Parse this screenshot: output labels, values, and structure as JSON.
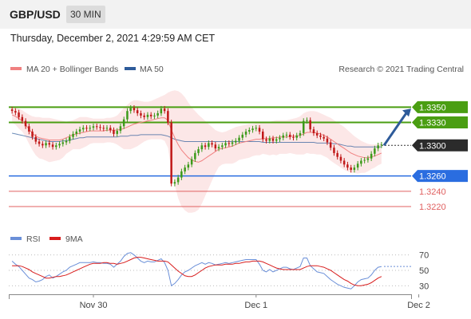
{
  "header": {
    "symbol": "GBP/USD",
    "timeframe": "30 MIN"
  },
  "datetime": "Thursday, December 2, 2021 4:29:59 AM CET",
  "colors": {
    "ma20": "#f08080",
    "ma50": "#2e5b9a",
    "rsi": "#6a8fd8",
    "rsi_ma": "#d81c1c",
    "resistance": "#4a9e12",
    "support": "#2a6de0",
    "target": "#e06060",
    "bull_candle": "#3c9a1a",
    "bear_candle": "#c01818",
    "arrow": "#2e5b9a"
  },
  "chart_data": [
    {
      "type": "candlestick",
      "legend": [
        {
          "name": "MA 20 + Bollinger Bands",
          "color": "#f08080"
        },
        {
          "name": "MA 50",
          "color": "#2e5b9a"
        }
      ],
      "credit": "Research © 2021 Trading Central",
      "ylim": [
        1.3195,
        1.339
      ],
      "x_ticks": [
        {
          "label": "Nov 30",
          "index": 24
        },
        {
          "label": "Dec 1",
          "index": 72
        },
        {
          "label": "Dec 2",
          "index": 120
        }
      ],
      "last_price": "1.3300",
      "levels": [
        {
          "label": "1.3350",
          "value": 1.335,
          "kind": "resistance"
        },
        {
          "label": "1.3330",
          "value": 1.333,
          "kind": "resistance"
        },
        {
          "label": "1.3260",
          "value": 1.326,
          "kind": "pivot"
        },
        {
          "label": "1.3240",
          "value": 1.324,
          "kind": "target"
        },
        {
          "label": "1.3220",
          "value": 1.322,
          "kind": "target"
        }
      ],
      "forecast_arrow": {
        "from": 1.33,
        "to": 1.3348
      },
      "close": [
        1.3345,
        1.3343,
        1.3337,
        1.3332,
        1.3325,
        1.3318,
        1.3311,
        1.3305,
        1.3302,
        1.33,
        1.3303,
        1.3301,
        1.3298,
        1.33,
        1.3302,
        1.3304,
        1.3306,
        1.3311,
        1.3315,
        1.3318,
        1.3321,
        1.3323,
        1.3322,
        1.3323,
        1.3325,
        1.3324,
        1.3323,
        1.3322,
        1.3323,
        1.332,
        1.3315,
        1.3319,
        1.3325,
        1.3334,
        1.3345,
        1.3349,
        1.3346,
        1.3342,
        1.3339,
        1.3337,
        1.334,
        1.3338,
        1.3339,
        1.3342,
        1.3348,
        1.3345,
        1.333,
        1.325,
        1.3252,
        1.3258,
        1.3266,
        1.3271,
        1.3275,
        1.3282,
        1.329,
        1.3295,
        1.33,
        1.3298,
        1.3303,
        1.3301,
        1.3296,
        1.3298,
        1.33,
        1.3303,
        1.3302,
        1.3304,
        1.3306,
        1.331,
        1.3314,
        1.3318,
        1.332,
        1.3322,
        1.3323,
        1.3318,
        1.3308,
        1.3306,
        1.3309,
        1.3306,
        1.3308,
        1.331,
        1.3313,
        1.3314,
        1.3311,
        1.331,
        1.3313,
        1.3316,
        1.3332,
        1.3333,
        1.3321,
        1.3316,
        1.3313,
        1.3311,
        1.3309,
        1.3304,
        1.3297,
        1.329,
        1.3285,
        1.328,
        1.3275,
        1.3271,
        1.3268,
        1.3271,
        1.3276,
        1.328,
        1.3281,
        1.3283,
        1.3289,
        1.3296,
        1.33,
        1.3301
      ],
      "ma20": [
        1.334,
        1.3338,
        1.3335,
        1.3332,
        1.3327,
        1.3321,
        1.3316,
        1.3312,
        1.331,
        1.3309,
        1.3308,
        1.3307,
        1.3307,
        1.3307,
        1.3307,
        1.3308,
        1.331,
        1.3312,
        1.3314,
        1.3315,
        1.3316,
        1.3317,
        1.3318,
        1.3319,
        1.3319,
        1.3319,
        1.3319,
        1.3319,
        1.332,
        1.332,
        1.332,
        1.332,
        1.3321,
        1.3322,
        1.3324,
        1.3326,
        1.3328,
        1.3329,
        1.333,
        1.3331,
        1.3332,
        1.3333,
        1.3334,
        1.3335,
        1.3336,
        1.3336,
        1.3333,
        1.332,
        1.331,
        1.3301,
        1.3294,
        1.3289,
        1.3284,
        1.3281,
        1.3279,
        1.3278,
        1.328,
        1.3283,
        1.3286,
        1.3289,
        1.3292,
        1.3295,
        1.3296,
        1.3297,
        1.3298,
        1.3299,
        1.3301,
        1.3303,
        1.3304,
        1.3305,
        1.3306,
        1.3307,
        1.3308,
        1.3308,
        1.3309,
        1.3309,
        1.3309,
        1.331,
        1.331,
        1.3311,
        1.3311,
        1.3311,
        1.3312,
        1.3312,
        1.3312,
        1.3313,
        1.3315,
        1.3317,
        1.3317,
        1.3317,
        1.3316,
        1.3315,
        1.3313,
        1.3311,
        1.3308,
        1.3305,
        1.3302,
        1.3299,
        1.3296,
        1.3293,
        1.329,
        1.3288,
        1.3286,
        1.3285,
        1.3284,
        1.3284,
        1.3285,
        1.3286,
        1.3288,
        1.329
      ],
      "upper_band": [
        1.335,
        1.3349,
        1.3348,
        1.3346,
        1.3343,
        1.334,
        1.3338,
        1.3337,
        1.3337,
        1.3336,
        1.3336,
        1.3336,
        1.3335,
        1.3334,
        1.3333,
        1.3332,
        1.3331,
        1.3332,
        1.3333,
        1.3335,
        1.3337,
        1.3337,
        1.3337,
        1.3336,
        1.3335,
        1.3335,
        1.3335,
        1.3335,
        1.3336,
        1.3336,
        1.3337,
        1.3339,
        1.3344,
        1.3349,
        1.3353,
        1.3357,
        1.3359,
        1.3359,
        1.3358,
        1.3357,
        1.3357,
        1.3358,
        1.336,
        1.3362,
        1.3364,
        1.3366,
        1.3369,
        1.3371,
        1.3372,
        1.3371,
        1.3368,
        1.3363,
        1.3356,
        1.335,
        1.3345,
        1.334,
        1.3336,
        1.3332,
        1.3328,
        1.3324,
        1.332,
        1.3318,
        1.3317,
        1.3318,
        1.332,
        1.3322,
        1.3324,
        1.3325,
        1.3326,
        1.3327,
        1.3328,
        1.3328,
        1.3329,
        1.3329,
        1.3329,
        1.333,
        1.3331,
        1.3332,
        1.3333,
        1.3333,
        1.3333,
        1.3333,
        1.3334,
        1.3335,
        1.3336,
        1.3338,
        1.3342,
        1.3344,
        1.3345,
        1.3345,
        1.3344,
        1.3342,
        1.334,
        1.3338,
        1.3336,
        1.3333,
        1.333,
        1.3327,
        1.3324,
        1.332,
        1.3316,
        1.3312,
        1.3309,
        1.3306,
        1.3304,
        1.3302,
        1.3301,
        1.3301,
        1.3302,
        1.3304
      ],
      "lower_band": [
        1.333,
        1.3327,
        1.3322,
        1.3318,
        1.3311,
        1.3302,
        1.3294,
        1.3287,
        1.3283,
        1.3282,
        1.328,
        1.3278,
        1.3279,
        1.328,
        1.3281,
        1.3284,
        1.3289,
        1.3292,
        1.3295,
        1.3295,
        1.3295,
        1.3297,
        1.3299,
        1.3302,
        1.3303,
        1.3303,
        1.3303,
        1.3303,
        1.3304,
        1.3304,
        1.3303,
        1.3301,
        1.3298,
        1.3295,
        1.3295,
        1.3295,
        1.3297,
        1.3299,
        1.3302,
        1.3305,
        1.3307,
        1.3308,
        1.3308,
        1.3308,
        1.3308,
        1.3306,
        1.3297,
        1.3269,
        1.3248,
        1.3231,
        1.322,
        1.3215,
        1.3212,
        1.3212,
        1.3213,
        1.3216,
        1.3224,
        1.3234,
        1.3244,
        1.3254,
        1.3264,
        1.3272,
        1.3275,
        1.3276,
        1.3276,
        1.3276,
        1.3278,
        1.3281,
        1.3282,
        1.3283,
        1.3284,
        1.3286,
        1.3287,
        1.3287,
        1.3289,
        1.3288,
        1.3287,
        1.3288,
        1.3287,
        1.3289,
        1.3289,
        1.3289,
        1.329,
        1.3289,
        1.3288,
        1.3288,
        1.3288,
        1.329,
        1.3289,
        1.3289,
        1.3288,
        1.3288,
        1.3286,
        1.3284,
        1.328,
        1.3277,
        1.3274,
        1.3271,
        1.3268,
        1.3266,
        1.3264,
        1.3264,
        1.3263,
        1.3264,
        1.3264,
        1.3266,
        1.3269,
        1.3271,
        1.3274,
        1.3276
      ],
      "ma50": [
        1.3316,
        1.3315,
        1.3314,
        1.3313,
        1.3312,
        1.3311,
        1.331,
        1.3309,
        1.3308,
        1.3307,
        1.3306,
        1.3305,
        1.3305,
        1.3305,
        1.3305,
        1.3306,
        1.3306,
        1.3307,
        1.3308,
        1.3309,
        1.331,
        1.331,
        1.3311,
        1.3311,
        1.3311,
        1.3311,
        1.3311,
        1.3311,
        1.3311,
        1.3311,
        1.3311,
        1.3311,
        1.3312,
        1.3312,
        1.3312,
        1.3313,
        1.3313,
        1.3313,
        1.3314,
        1.3314,
        1.3314,
        1.3314,
        1.3314,
        1.3314,
        1.3314,
        1.3313,
        1.3312,
        1.331,
        1.3308,
        1.3307,
        1.3306,
        1.3305,
        1.3305,
        1.3305,
        1.3305,
        1.3305,
        1.3305,
        1.3305,
        1.3305,
        1.3305,
        1.3305,
        1.3305,
        1.3305,
        1.3305,
        1.3305,
        1.3305,
        1.3305,
        1.3305,
        1.3305,
        1.3305,
        1.3305,
        1.3305,
        1.3305,
        1.3305,
        1.3304,
        1.3304,
        1.3304,
        1.3304,
        1.3304,
        1.3304,
        1.3304,
        1.3304,
        1.3304,
        1.3304,
        1.3304,
        1.3304,
        1.3304,
        1.3304,
        1.3304,
        1.3304,
        1.3303,
        1.3303,
        1.3303,
        1.3303,
        1.3303,
        1.3302,
        1.3302,
        1.3301,
        1.33,
        1.3299,
        1.3299,
        1.3298,
        1.3298,
        1.3298,
        1.3298,
        1.3298,
        1.3298,
        1.3298,
        1.3298,
        1.3298
      ]
    },
    {
      "type": "line",
      "legend": [
        {
          "name": "RSI",
          "color": "#6a8fd8"
        },
        {
          "name": "9MA",
          "color": "#d81c1c"
        }
      ],
      "ylim": [
        20,
        80
      ],
      "y_ticks": [
        70,
        50,
        30
      ],
      "rsi": [
        62,
        58,
        55,
        50,
        45,
        40,
        38,
        35,
        36,
        38,
        42,
        44,
        40,
        42,
        45,
        48,
        50,
        54,
        56,
        58,
        60,
        60,
        60,
        60,
        61,
        60,
        60,
        59,
        59,
        58,
        54,
        58,
        62,
        68,
        72,
        73,
        70,
        66,
        62,
        60,
        62,
        61,
        61,
        63,
        65,
        60,
        50,
        30,
        33,
        38,
        44,
        48,
        50,
        53,
        56,
        58,
        60,
        58,
        60,
        59,
        57,
        58,
        59,
        60,
        59,
        60,
        61,
        62,
        63,
        64,
        64,
        64,
        64,
        58,
        50,
        48,
        51,
        48,
        50,
        52,
        54,
        54,
        52,
        51,
        53,
        55,
        66,
        66,
        56,
        52,
        48,
        47,
        46,
        42,
        38,
        35,
        32,
        30,
        28,
        27,
        26,
        30,
        35,
        38,
        39,
        40,
        44,
        50,
        54,
        55
      ],
      "rsi_ma": [
        56,
        56,
        56,
        55,
        53,
        51,
        48,
        46,
        44,
        42,
        40,
        40,
        41,
        42,
        42,
        43,
        44,
        46,
        48,
        50,
        52,
        54,
        56,
        58,
        59,
        59,
        59,
        60,
        60,
        59,
        59,
        58,
        59,
        60,
        62,
        64,
        66,
        67,
        67,
        66,
        65,
        64,
        63,
        62,
        62,
        62,
        61,
        57,
        53,
        49,
        46,
        43,
        42,
        42,
        44,
        47,
        50,
        53,
        55,
        56,
        57,
        57,
        57,
        58,
        58,
        58,
        59,
        59,
        60,
        61,
        61,
        62,
        62,
        62,
        61,
        59,
        57,
        55,
        53,
        52,
        51,
        51,
        51,
        51,
        51,
        51,
        53,
        55,
        56,
        56,
        56,
        55,
        54,
        52,
        50,
        47,
        44,
        41,
        38,
        36,
        33,
        31,
        30,
        30,
        31,
        32,
        34,
        37,
        40,
        42
      ]
    }
  ]
}
